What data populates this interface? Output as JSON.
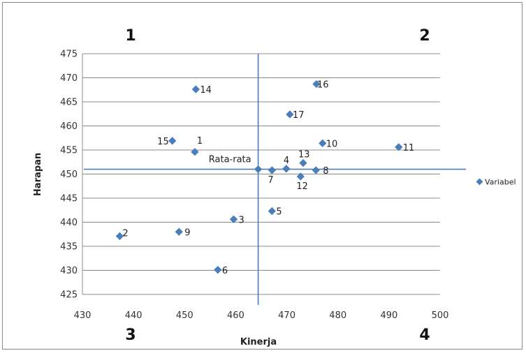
{
  "chart_data": {
    "type": "scatter",
    "xlabel": "Kinerja",
    "ylabel": "Harapan",
    "xlim": [
      430,
      500
    ],
    "ylim": [
      425,
      475
    ],
    "x_ticks": [
      430,
      440,
      450,
      460,
      470,
      480,
      490,
      500
    ],
    "y_ticks": [
      425,
      430,
      435,
      440,
      445,
      450,
      455,
      460,
      465,
      470,
      475
    ],
    "grid": "horizontal",
    "legend_position": "right",
    "marker_color": "#4a7ebb",
    "line_color": "#4a7ebb",
    "series": [
      {
        "name": "Variabel",
        "points": [
          {
            "label": "1",
            "x": 452,
            "y": 454.6
          },
          {
            "label": "2",
            "x": 437.3,
            "y": 437.1
          },
          {
            "label": "3",
            "x": 459.6,
            "y": 440.6
          },
          {
            "label": "4",
            "x": 469.9,
            "y": 451.1
          },
          {
            "label": "5",
            "x": 467.1,
            "y": 442.3
          },
          {
            "label": "6",
            "x": 456.5,
            "y": 430.1
          },
          {
            "label": "7",
            "x": 467.1,
            "y": 450.8
          },
          {
            "label": "8",
            "x": 475.7,
            "y": 450.8
          },
          {
            "label": "9",
            "x": 448.9,
            "y": 438
          },
          {
            "label": "10",
            "x": 477,
            "y": 456.4
          },
          {
            "label": "11",
            "x": 491.9,
            "y": 455.6
          },
          {
            "label": "12",
            "x": 472.7,
            "y": 449.5
          },
          {
            "label": "13",
            "x": 473.2,
            "y": 452.3
          },
          {
            "label": "14",
            "x": 452.2,
            "y": 467.6
          },
          {
            "label": "15",
            "x": 447.6,
            "y": 456.9
          },
          {
            "label": "16",
            "x": 475.8,
            "y": 468.7
          },
          {
            "label": "17",
            "x": 470.6,
            "y": 462.4
          },
          {
            "label": "Rata-rata",
            "x": 464.4,
            "y": 451
          }
        ]
      }
    ],
    "mean_lines": {
      "x": 464.4,
      "y": 451
    },
    "quadrants": [
      "1",
      "2",
      "3",
      "4"
    ]
  }
}
